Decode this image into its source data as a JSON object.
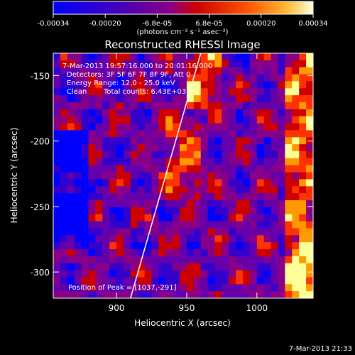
{
  "colors": {
    "background": "#000000",
    "foreground": "#ffffff",
    "colormap": [
      "#0000ff",
      "#3300cc",
      "#6600aa",
      "#880088",
      "#cc0000",
      "#ff3300",
      "#ff9900",
      "#ffff99"
    ]
  },
  "colorbar": {
    "ticks": [
      "-0.00034",
      "-0.00020",
      "-6.8e-05",
      "6.8e-05",
      "0.00020",
      "0.00034"
    ],
    "units_text": "(photons cm⁻² s⁻¹ asec⁻²)"
  },
  "chart_data": {
    "type": "heatmap",
    "title": "Reconstructed RHESSI Image",
    "xlabel": "Heliocentric X (arcsec)",
    "ylabel": "Heliocentric Y (arcsec)",
    "xlim": [
      855,
      1040
    ],
    "ylim": [
      -320,
      -133
    ],
    "xticks": [
      "900",
      "950",
      "1000"
    ],
    "xtick_values": [
      900,
      950,
      1000
    ],
    "yticks": [
      "-150",
      "-200",
      "-250",
      "-300"
    ],
    "ytick_values": [
      -150,
      -200,
      -250,
      -300
    ],
    "value_range": [
      -0.00034,
      0.00034
    ],
    "annotations": {
      "time": "7-Mar-2013 19:57:16.000 to 20:01:16.000",
      "detectors": "Detectors: 3F 5F 6F 7F 8F 9F, Att 0",
      "energy": "Energy Range: 12.0 - 25.0 keV",
      "clean": "Clean",
      "total_counts": "Total counts: 6.43E+03",
      "peak": "Position of Peak = [1037,-291]"
    },
    "limb_line": {
      "x": [
        910,
        960
      ],
      "y": [
        -320,
        -133
      ]
    }
  },
  "footer": {
    "timestamp": "7-Mar-2013 21:33"
  }
}
